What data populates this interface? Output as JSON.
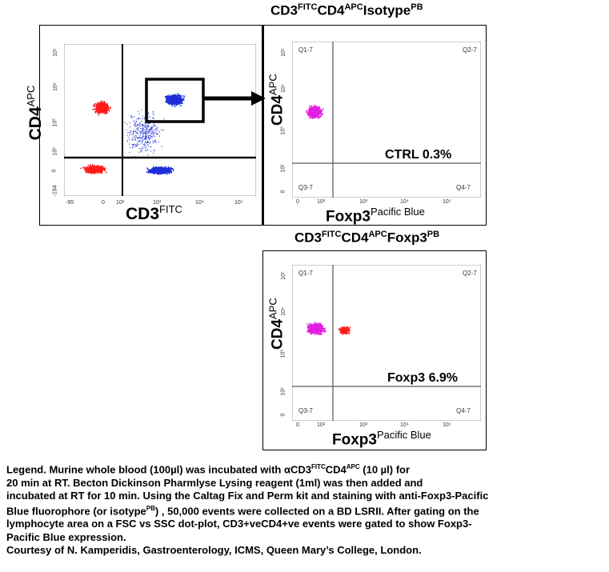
{
  "panel1": {
    "x_axis": {
      "label": "CD3",
      "sup": "FITC",
      "ticks": [
        "-95",
        "0",
        "10²",
        "10³",
        "10⁴",
        "10⁵"
      ]
    },
    "y_axis": {
      "label": "CD4",
      "sup": "APC",
      "ticks": [
        "10⁵",
        "10⁴",
        "10³",
        "10²",
        "0",
        "-194"
      ]
    }
  },
  "panel2": {
    "title": {
      "a": "CD3",
      "a_sup": "FITC",
      "b": "CD4",
      "b_sup": "APC",
      "c": "Isotype",
      "c_sup": "PB"
    },
    "x_axis": {
      "label": "Foxp3",
      "sup": "Pacific Blue",
      "ticks": [
        "0",
        "10²",
        "10³",
        "10⁴",
        "10⁵"
      ]
    },
    "y_axis": {
      "label": "CD4",
      "sup": "APC",
      "ticks": [
        "10⁵",
        "10⁴",
        "10³",
        "10²",
        "0"
      ]
    },
    "quadrants": {
      "q1": "Q1-7",
      "q2": "Q2-7",
      "q3": "Q3-7",
      "q4": "Q4-7"
    },
    "stat": "CTRL 0.3%"
  },
  "panel3": {
    "title": {
      "a": "CD3",
      "a_sup": "FITC",
      "b": "CD4",
      "b_sup": "APC",
      "c": "Foxp3",
      "c_sup": "PB"
    },
    "x_axis": {
      "label": "Foxp3",
      "sup": "Pacific Blue",
      "ticks": [
        "0",
        "10²",
        "10³",
        "10⁴",
        "10⁵"
      ]
    },
    "y_axis": {
      "label": "CD4",
      "sup": "APC",
      "ticks": [
        "10⁵",
        "10⁴",
        "10³",
        "10²",
        "0"
      ]
    },
    "quadrants": {
      "q1": "Q1-7",
      "q2": "Q2-7",
      "q3": "Q3-7",
      "q4": "Q4-7"
    },
    "stat": "Foxp3 6.9%"
  },
  "legend": {
    "l1_a": "Legend. Murine whole blood (100µl) was incubated with ",
    "l1_alpha": "α",
    "l1_b": "CD3",
    "l1_sup1": "FITC",
    "l1_c": "CD4",
    "l1_sup2": "APC",
    "l1_d": " (10 µl) for",
    "l2": "20 min at RT. Becton Dickinson Pharmlyse Lysing reagent (1ml) was then added and",
    "l3": "incubated at RT for 10 min. Using the Caltag Fix and Perm kit and staining with anti-Foxp3-Pacific",
    "l4_a": "Blue fluorophore (or isotype",
    "l4_sup": "PB",
    "l4_b": ") , 50,000 events were collected on a BD LSRII. After gating on the",
    "l5": "lymphocyte area on a FSC vs SSC dot-plot, CD3+veCD4+ve events were gated to show Foxp3-",
    "l6": "Pacific Blue expression.",
    "l7": "Courtesy of N. Kamperidis, Gastroenterology, ICMS, Queen Mary’s College, London."
  },
  "colors": {
    "red": "#ff1a1a",
    "blue": "#1f2fd6",
    "magenta": "#e020e0",
    "frame": "#000000"
  }
}
